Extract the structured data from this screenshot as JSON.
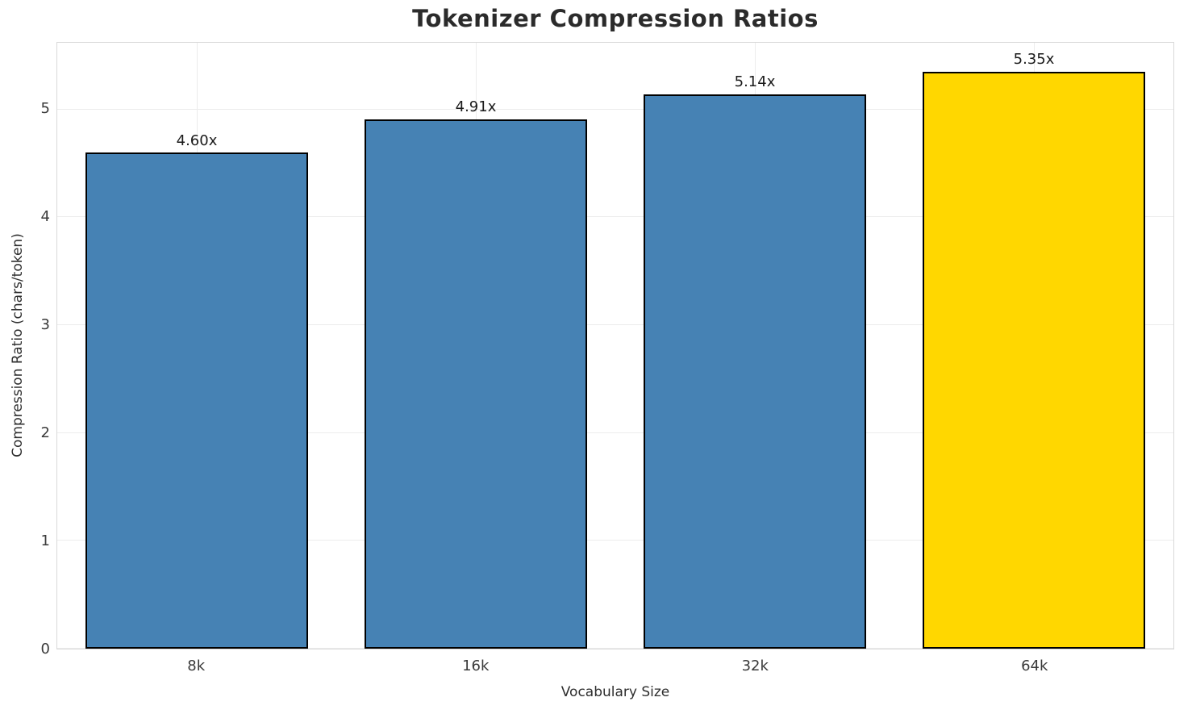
{
  "chart_data": {
    "type": "bar",
    "title": "Tokenizer Compression Ratios",
    "xlabel": "Vocabulary Size",
    "ylabel": "Compression Ratio (chars/token)",
    "categories": [
      "8k",
      "16k",
      "32k",
      "64k"
    ],
    "values": [
      4.6,
      4.91,
      5.14,
      5.35
    ],
    "value_labels": [
      "4.60x",
      "4.91x",
      "5.14x",
      "5.35x"
    ],
    "bar_colors": [
      "#4682B4",
      "#4682B4",
      "#4682B4",
      "#FFD700"
    ],
    "edge_color": "#000000",
    "ylim": [
      0,
      5.62
    ],
    "yticks": [
      0,
      1,
      2,
      3,
      4,
      5
    ],
    "grid": true,
    "legend": false,
    "highlight_color": "#FFD700",
    "primary_color": "#4682B4"
  }
}
